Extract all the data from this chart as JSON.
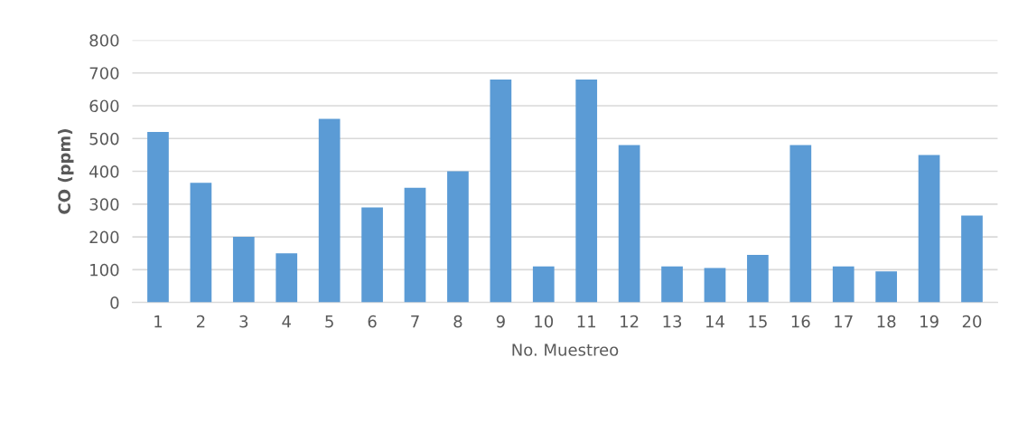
{
  "chart_data": {
    "type": "bar",
    "xlabel": "No. Muestreo",
    "ylabel": "CO (ppm)",
    "categories": [
      "1",
      "2",
      "3",
      "4",
      "5",
      "6",
      "7",
      "8",
      "9",
      "10",
      "11",
      "12",
      "13",
      "14",
      "15",
      "16",
      "17",
      "18",
      "19",
      "20"
    ],
    "values": [
      520,
      365,
      200,
      150,
      560,
      290,
      350,
      400,
      680,
      110,
      680,
      480,
      110,
      105,
      145,
      480,
      110,
      95,
      450,
      265
    ],
    "color": "#5b9bd5",
    "ylim": [
      0,
      800
    ],
    "yticks": [
      0,
      100,
      200,
      300,
      400,
      500,
      600,
      700,
      800
    ],
    "grid": "y"
  }
}
